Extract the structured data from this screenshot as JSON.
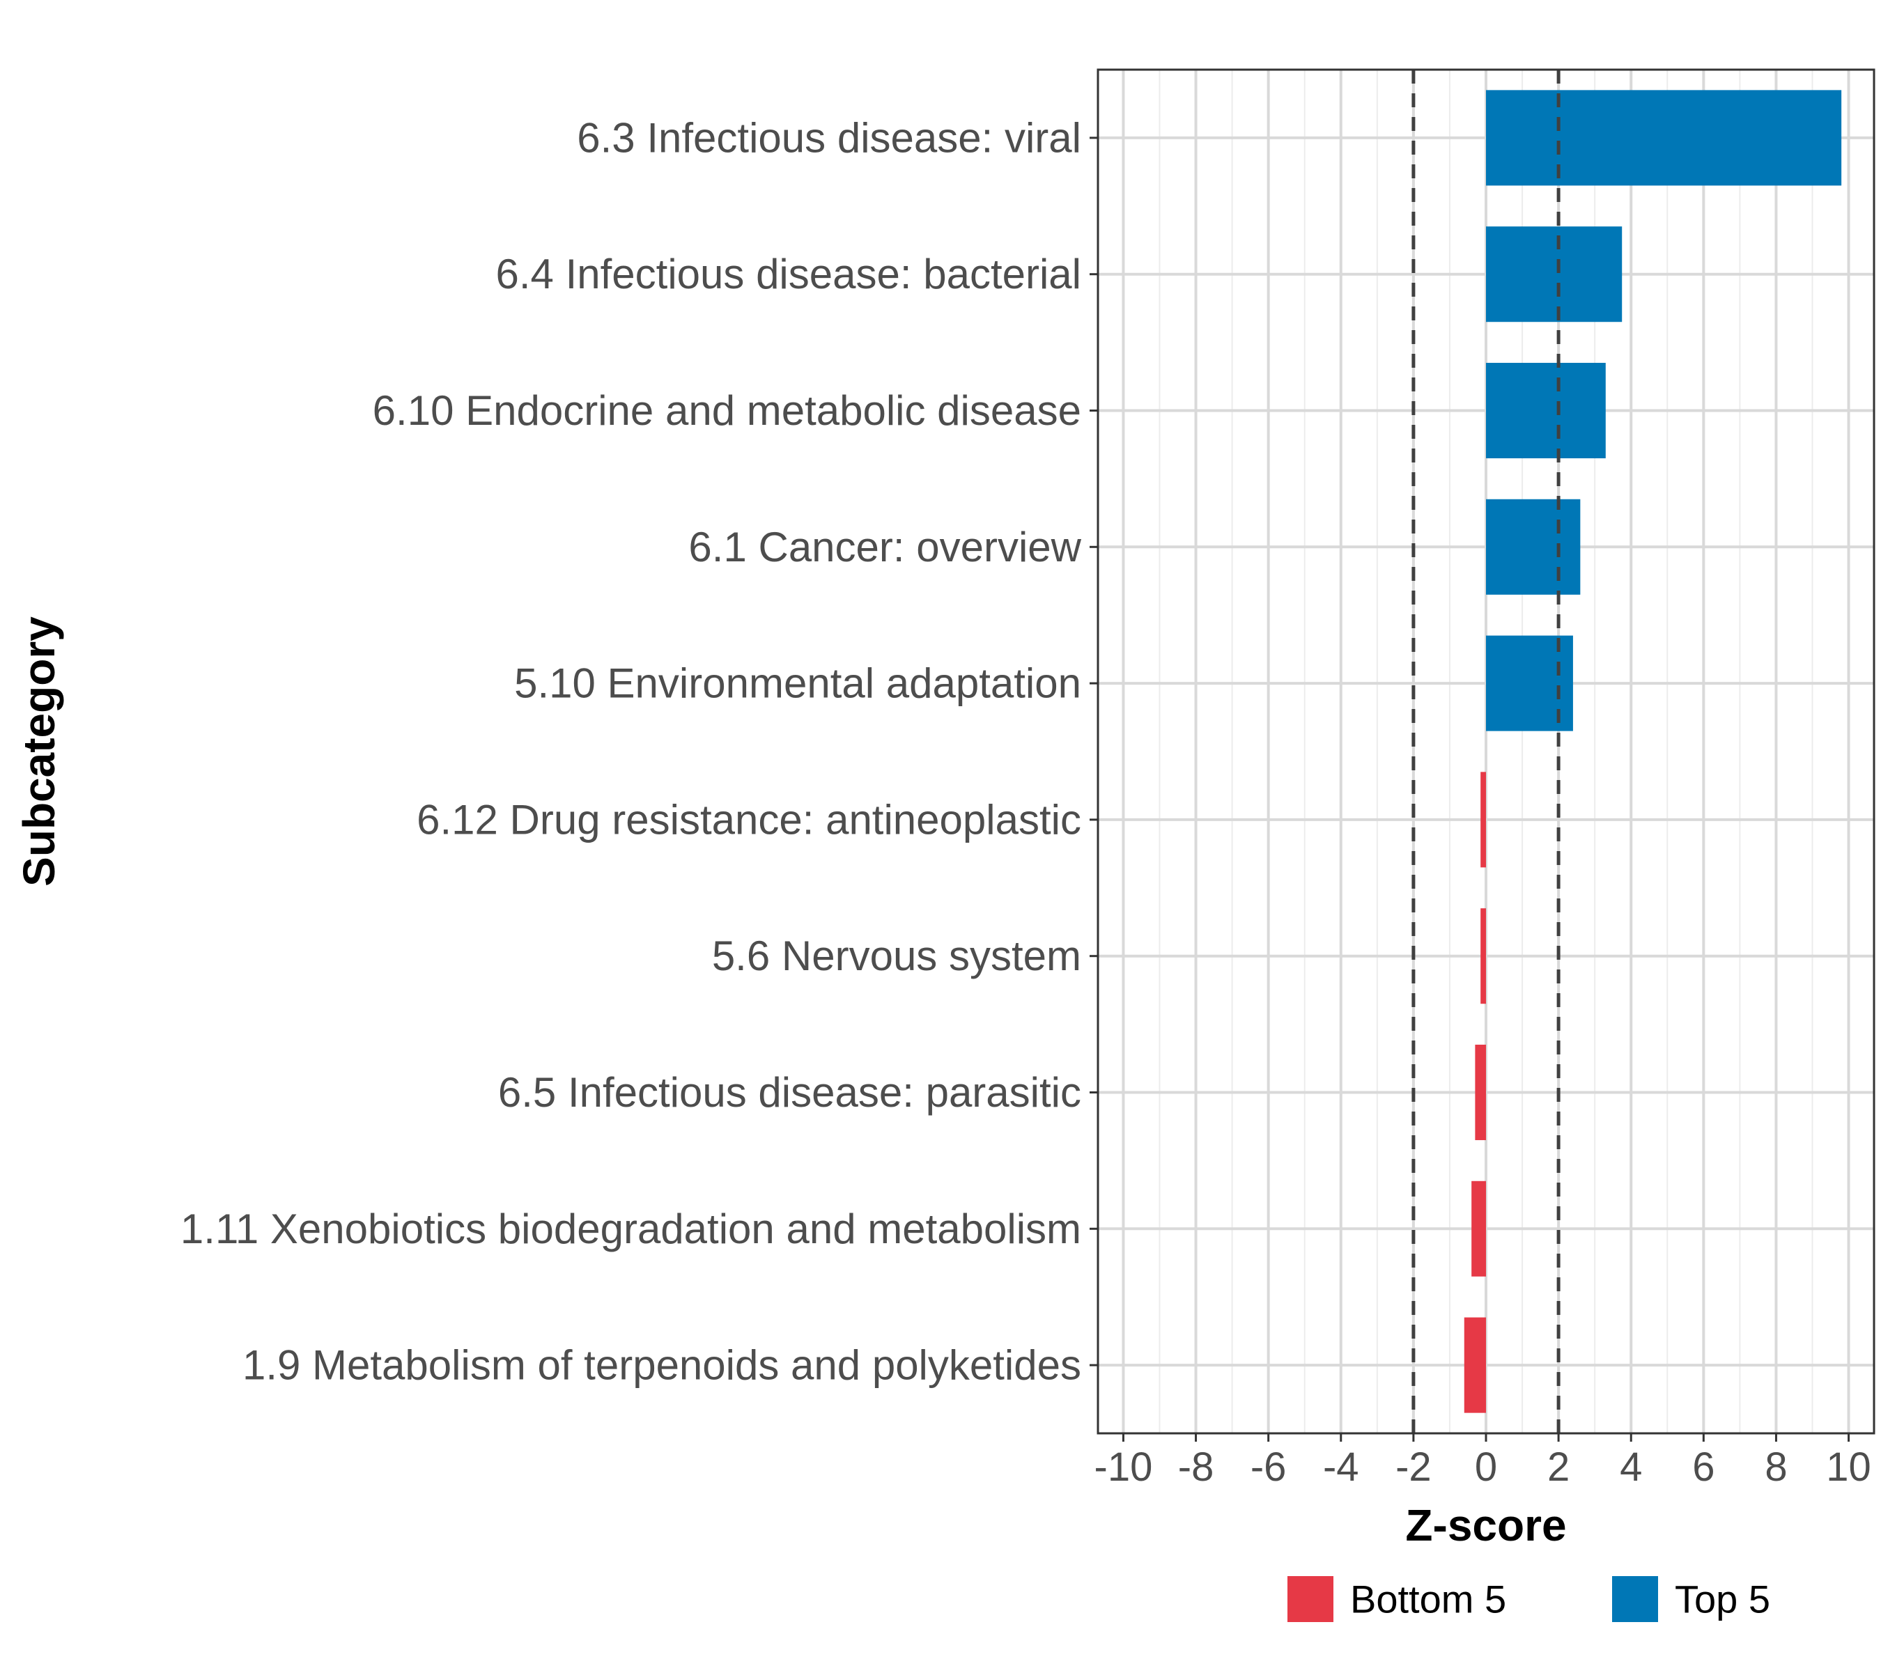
{
  "chart_data": {
    "type": "bar",
    "orientation": "horizontal",
    "categories": [
      "6.3 Infectious disease: viral",
      "6.4 Infectious disease: bacterial",
      "6.10 Endocrine and metabolic disease",
      "6.1 Cancer: overview",
      "5.10 Environmental adaptation",
      "6.12 Drug resistance: antineoplastic",
      "5.6 Nervous system",
      "6.5 Infectious disease: parasitic",
      "1.11 Xenobiotics biodegradation and metabolism",
      "1.9 Metabolism of terpenoids and polyketides"
    ],
    "values": [
      9.8,
      3.75,
      3.3,
      2.6,
      2.4,
      -0.15,
      -0.15,
      -0.3,
      -0.4,
      -0.6
    ],
    "groups": [
      "Top 5",
      "Top 5",
      "Top 5",
      "Top 5",
      "Top 5",
      "Bottom 5",
      "Bottom 5",
      "Bottom 5",
      "Bottom 5",
      "Bottom 5"
    ],
    "xlabel": "Z-score",
    "ylabel": "Subcategory",
    "xlim": [
      -10.7,
      10.7
    ],
    "xticks": [
      -10,
      -8,
      -6,
      -4,
      -2,
      0,
      2,
      4,
      6,
      8,
      10
    ],
    "xtick_labels": [
      "-10",
      "-8",
      "-6",
      "-4",
      "-2",
      "0",
      "2",
      "4",
      "6",
      "8",
      "10"
    ],
    "reference_lines": [
      -2,
      2
    ],
    "grid": true,
    "legend": {
      "position": "bottom",
      "entries": [
        {
          "label": "Bottom 5",
          "color": "#e63946"
        },
        {
          "label": "Top 5",
          "color": "#0077b6"
        }
      ]
    },
    "colors": {
      "Top 5": "#0077b6",
      "Bottom 5": "#e63946"
    }
  }
}
